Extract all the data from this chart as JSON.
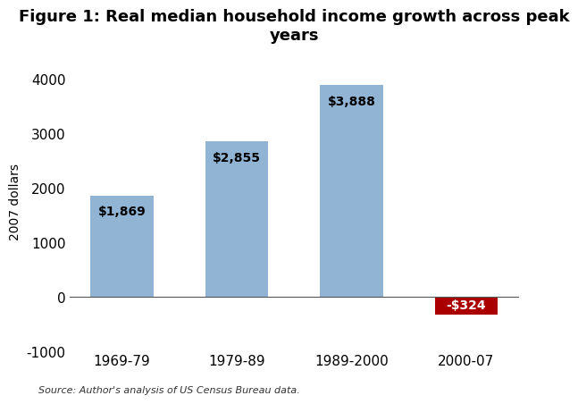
{
  "title": "Figure 1: Real median household income growth across peak\nyears",
  "categories": [
    "1969-79",
    "1979-89",
    "1989-2000",
    "2000-07"
  ],
  "values": [
    1869,
    2855,
    3888,
    -324
  ],
  "bar_colors": [
    "#92b4d4",
    "#92b4d4",
    "#92b4d4",
    "#aa0000"
  ],
  "label_colors": [
    "#000000",
    "#000000",
    "#000000",
    "#ffffff"
  ],
  "labels": [
    "$1,869",
    "$2,855",
    "$3,888",
    "-$324"
  ],
  "ylabel": "2007 dollars",
  "ylim": [
    -1000,
    4500
  ],
  "yticks": [
    -1000,
    0,
    1000,
    2000,
    3000,
    4000
  ],
  "title_fontsize": 13,
  "label_fontsize": 10,
  "tick_fontsize": 11,
  "ylabel_fontsize": 10,
  "source_text": "Source: Author's analysis of US Census Bureau data.",
  "bg_color": "#ffffff"
}
